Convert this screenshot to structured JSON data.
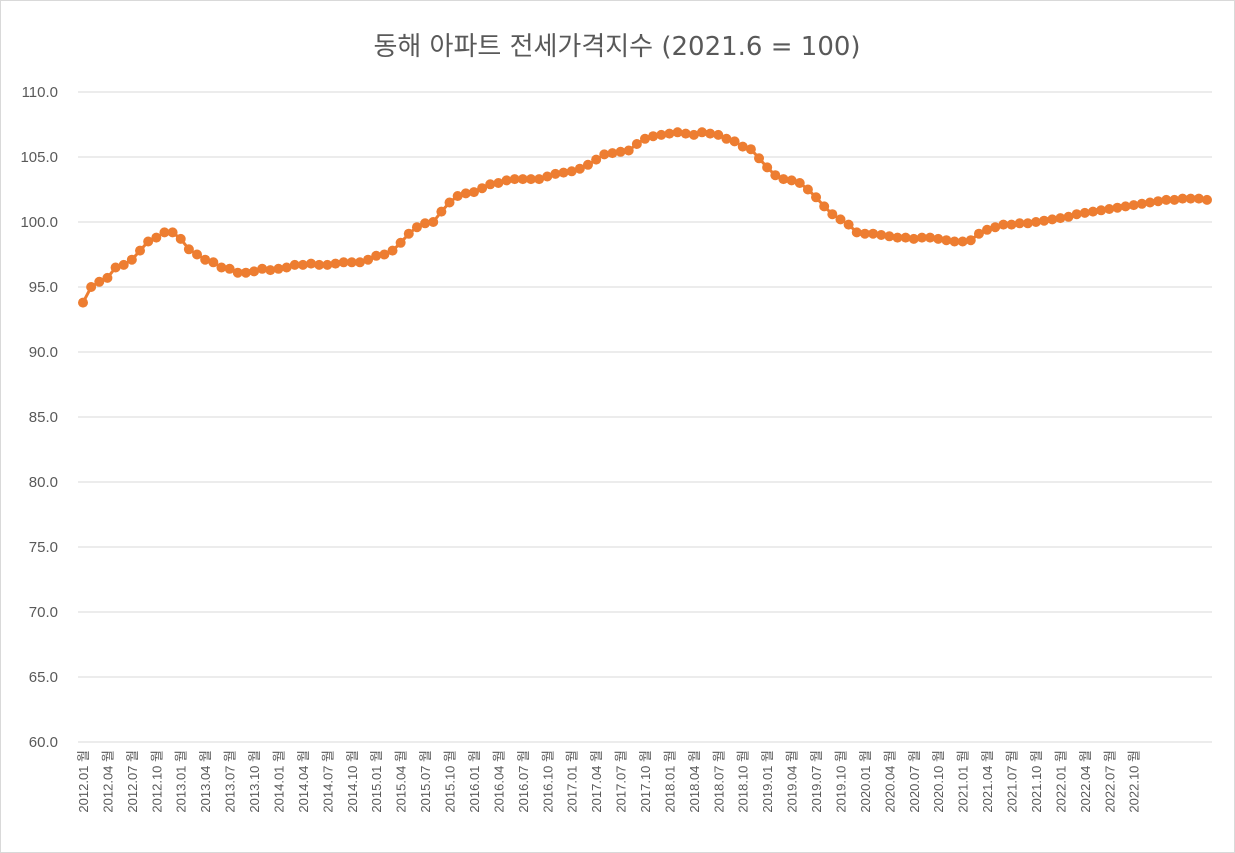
{
  "chart_data": {
    "type": "line",
    "title": "동해 아파트 전세가격지수 (2021.6 = 100)",
    "xlabel": "",
    "ylabel": "",
    "ylim": [
      60,
      110
    ],
    "yticks": [
      "60.0",
      "65.0",
      "70.0",
      "75.0",
      "80.0",
      "85.0",
      "90.0",
      "95.0",
      "100.0",
      "105.0",
      "110.0"
    ],
    "x_tick_labels": [
      "2012.01 월",
      "2012.04 월",
      "2012.07 월",
      "2012.10 월",
      "2013.01 월",
      "2013.04 월",
      "2013.07 월",
      "2013.10 월",
      "2014.01 월",
      "2014.04 월",
      "2014.07 월",
      "2014.10 월",
      "2015.01 월",
      "2015.04 월",
      "2015.07 월",
      "2015.10 월",
      "2016.01 월",
      "2016.04 월",
      "2016.07 월",
      "2016.10 월",
      "2017.01 월",
      "2017.04 월",
      "2017.07 월",
      "2017.10 월",
      "2018.01 월",
      "2018.04 월",
      "2018.07 월",
      "2018.10 월",
      "2019.01 월",
      "2019.04 월",
      "2019.07 월",
      "2019.10 월",
      "2020.01 월",
      "2020.04 월",
      "2020.07 월",
      "2020.10 월",
      "2021.01 월",
      "2021.04 월",
      "2021.07 월",
      "2021.10 월",
      "2022.01 월",
      "2022.04 월",
      "2022.07 월",
      "2022.10 월"
    ],
    "grid": true,
    "legend": "none",
    "series_color": "#ed7d31",
    "series": [
      {
        "values": [
          93.8,
          95.0,
          95.4,
          95.7,
          96.5,
          96.7,
          97.1,
          97.8,
          98.5,
          98.8,
          99.2,
          99.2,
          98.7,
          97.9,
          97.5,
          97.1,
          96.9,
          96.5,
          96.4,
          96.1,
          96.1,
          96.2,
          96.4,
          96.3,
          96.4,
          96.5,
          96.7,
          96.7,
          96.8,
          96.7,
          96.7,
          96.8,
          96.9,
          96.9,
          96.9,
          97.1,
          97.4,
          97.5,
          97.8,
          98.4,
          99.1,
          99.6,
          99.9,
          100.0,
          100.8,
          101.5,
          102.0,
          102.2,
          102.3,
          102.6,
          102.9,
          103.0,
          103.2,
          103.3,
          103.3,
          103.3,
          103.3,
          103.5,
          103.7,
          103.8,
          103.9,
          104.1,
          104.4,
          104.8,
          105.2,
          105.3,
          105.4,
          105.5,
          106.0,
          106.4,
          106.6,
          106.7,
          106.8,
          106.9,
          106.8,
          106.7,
          106.9,
          106.8,
          106.7,
          106.4,
          106.2,
          105.8,
          105.6,
          104.9,
          104.2,
          103.6,
          103.3,
          103.2,
          103.0,
          102.5,
          101.9,
          101.2,
          100.6,
          100.2,
          99.8,
          99.2,
          99.1,
          99.1,
          99.0,
          98.9,
          98.8,
          98.8,
          98.7,
          98.8,
          98.8,
          98.7,
          98.6,
          98.5,
          98.5,
          98.6,
          99.1,
          99.4,
          99.6,
          99.8,
          99.8,
          99.9,
          99.9,
          100.0,
          100.1,
          100.2,
          100.3,
          100.4,
          100.6,
          100.7,
          100.8,
          100.9,
          101.0,
          101.1,
          101.2,
          101.3,
          101.4,
          101.5,
          101.6,
          101.7,
          101.7,
          101.8,
          101.8,
          101.8,
          101.7
        ]
      }
    ]
  }
}
